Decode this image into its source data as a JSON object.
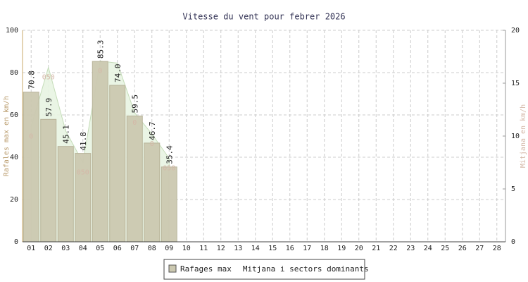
{
  "chart_data": {
    "type": "bar",
    "title": "Vitesse du vent pour febrer 2026",
    "categories": [
      "01",
      "02",
      "03",
      "04",
      "05",
      "06",
      "07",
      "08",
      "09",
      "10",
      "11",
      "12",
      "13",
      "14",
      "15",
      "16",
      "17",
      "18",
      "19",
      "20",
      "21",
      "22",
      "23",
      "24",
      "25",
      "26",
      "27",
      "28"
    ],
    "series": [
      {
        "name": "Rafages max",
        "color": "#cbc8b0",
        "values": [
          70.8,
          57.9,
          45.1,
          41.8,
          85.3,
          74.0,
          59.5,
          46.7,
          35.4,
          null,
          null,
          null,
          null,
          null,
          null,
          null,
          null,
          null,
          null,
          null,
          null,
          null,
          null,
          null,
          null,
          null,
          null,
          null
        ],
        "value_labels": [
          "70.8",
          "57.9",
          "45.1",
          "41.8",
          "85.3",
          "74.0",
          "59.5",
          "46.7",
          "35.4",
          null,
          null,
          null,
          null,
          null,
          null,
          null,
          null,
          null,
          null,
          null,
          null,
          null,
          null,
          null,
          null,
          null,
          null,
          null
        ]
      },
      {
        "name": "Mitjana i sectors dominants",
        "type": "area",
        "axis": "y2",
        "color": "#e8f4e2",
        "values": [
          10.9,
          16.5,
          10.5,
          7.5,
          17.1,
          16.9,
          12.2,
          10.2,
          7.9,
          null,
          null,
          null,
          null,
          null,
          null,
          null,
          null,
          null,
          null,
          null,
          null,
          null,
          null,
          null,
          null,
          null,
          null,
          null
        ],
        "direction_labels": [
          "0",
          "050",
          null,
          "050",
          "0",
          null,
          "0",
          "0",
          "050",
          null,
          null,
          null,
          null,
          null,
          null,
          null,
          null,
          null,
          null,
          null,
          null,
          null,
          null,
          null,
          null,
          null,
          null,
          null
        ]
      }
    ],
    "ylabel": "Rafales max en km/h",
    "y2label": "Mitjana en km/h",
    "ylim": [
      0,
      100
    ],
    "yticks": [
      0,
      20,
      40,
      60,
      80,
      100
    ],
    "y2lim": [
      0,
      20
    ],
    "y2ticks": [
      0,
      5,
      10,
      15,
      20
    ],
    "grid": true,
    "legend": "bottom"
  }
}
